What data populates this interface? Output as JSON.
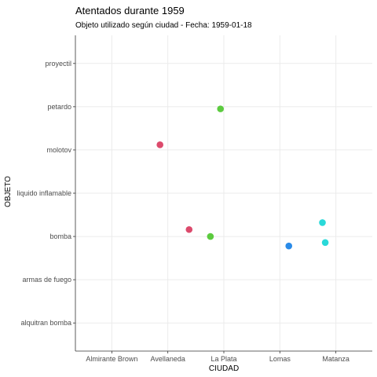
{
  "chart_data": {
    "type": "scatter",
    "title": "Atentados durante 1959",
    "subtitle": "Objeto utilizado según ciudad - Fecha: 1959-01-18",
    "xlabel": "CIUDAD",
    "ylabel": "OBJETO",
    "x_categories": [
      "Almirante Brown",
      "Avellaneda",
      "La Plata",
      "Lomas",
      "Matanza"
    ],
    "y_categories": [
      "alquitran bomba",
      "armas de fuego",
      "bomba",
      "liquido inflamable",
      "molotov",
      "petardo",
      "proyectil"
    ],
    "grid": true,
    "legend": "none",
    "points": [
      {
        "x": "Avellaneda",
        "y": "molotov",
        "x_jitter": -0.14,
        "y_jitter": 0.12,
        "color": "#dc4a6c"
      },
      {
        "x": "Avellaneda",
        "y": "bomba",
        "x_jitter": 0.38,
        "y_jitter": 0.16,
        "color": "#dc4a6c"
      },
      {
        "x": "La Plata",
        "y": "petardo",
        "x_jitter": -0.06,
        "y_jitter": -0.05,
        "color": "#5ccb3f"
      },
      {
        "x": "La Plata",
        "y": "bomba",
        "x_jitter": -0.24,
        "y_jitter": 0.0,
        "color": "#5ccb3f"
      },
      {
        "x": "Lomas",
        "y": "bomba",
        "x_jitter": 0.16,
        "y_jitter": -0.22,
        "color": "#2a8be8"
      },
      {
        "x": "Matanza",
        "y": "bomba",
        "x_jitter": -0.19,
        "y_jitter": -0.14,
        "color": "#2ad9d9"
      },
      {
        "x": "Matanza",
        "y": "bomba",
        "x_jitter": -0.24,
        "y_jitter": 0.32,
        "color": "#2ad9d9"
      }
    ]
  }
}
